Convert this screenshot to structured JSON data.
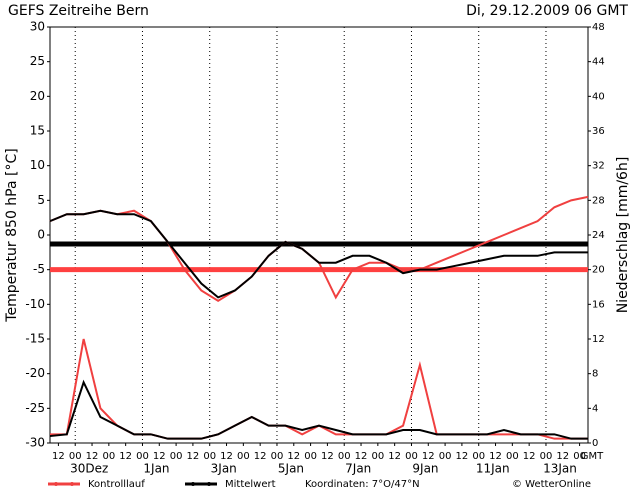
{
  "chart_data": {
    "type": "line",
    "title": "GEFS Zeitreihe Bern",
    "subtitle": "Di, 29.12.2009 06 GMT",
    "ylabel": "Temperatur 850 hPa [°C]",
    "y2label": "Niederschlag [mm/6h]",
    "xlabel": "GMT",
    "coordinates": "Koordinaten: 7°O/47°N",
    "credit": "© WetterOnline",
    "xlim": [
      0,
      384
    ],
    "ylim": [
      -30,
      30
    ],
    "yticks": [
      -30,
      -25,
      -20,
      -15,
      -10,
      -5,
      0,
      5,
      10,
      15,
      20,
      25,
      30
    ],
    "y2lim": [
      0,
      48
    ],
    "y2ticks": [
      0,
      4,
      8,
      12,
      16,
      20,
      24,
      28,
      32,
      36,
      40,
      44,
      48
    ],
    "xticks": [
      {
        "value": 6,
        "label": "12"
      },
      {
        "value": 18,
        "label": "00"
      },
      {
        "value": 30,
        "label": "12"
      },
      {
        "value": 42,
        "label": "00"
      },
      {
        "value": 54,
        "label": "12"
      },
      {
        "value": 66,
        "label": "00"
      },
      {
        "value": 78,
        "label": "12"
      },
      {
        "value": 90,
        "label": "00"
      },
      {
        "value": 102,
        "label": "12"
      },
      {
        "value": 114,
        "label": "00"
      },
      {
        "value": 126,
        "label": "12"
      },
      {
        "value": 138,
        "label": "00"
      },
      {
        "value": 150,
        "label": "12"
      },
      {
        "value": 162,
        "label": "00"
      },
      {
        "value": 174,
        "label": "12"
      },
      {
        "value": 186,
        "label": "00"
      },
      {
        "value": 198,
        "label": "12"
      },
      {
        "value": 210,
        "label": "00"
      },
      {
        "value": 222,
        "label": "12"
      },
      {
        "value": 234,
        "label": "00"
      },
      {
        "value": 246,
        "label": "12"
      },
      {
        "value": 258,
        "label": "00"
      },
      {
        "value": 270,
        "label": "12"
      },
      {
        "value": 282,
        "label": "00"
      },
      {
        "value": 294,
        "label": "12"
      },
      {
        "value": 306,
        "label": "00"
      },
      {
        "value": 318,
        "label": "12"
      },
      {
        "value": 330,
        "label": "00"
      },
      {
        "value": 342,
        "label": "12"
      },
      {
        "value": 354,
        "label": "00"
      },
      {
        "value": 366,
        "label": "12"
      },
      {
        "value": 378,
        "label": "00"
      }
    ],
    "date_ticks": [
      {
        "value": 18,
        "label": "30Dez"
      },
      {
        "value": 66,
        "label": "1Jan"
      },
      {
        "value": 114,
        "label": "3Jan"
      },
      {
        "value": 162,
        "label": "5Jan"
      },
      {
        "value": 210,
        "label": "7Jan"
      },
      {
        "value": 258,
        "label": "9Jan"
      },
      {
        "value": 306,
        "label": "11Jan"
      },
      {
        "value": 354,
        "label": "13Jan"
      }
    ],
    "x": [
      0,
      12,
      24,
      36,
      48,
      60,
      72,
      84,
      96,
      108,
      120,
      132,
      144,
      156,
      168,
      180,
      192,
      204,
      216,
      228,
      240,
      252,
      264,
      276,
      288,
      300,
      312,
      324,
      336,
      348,
      360,
      372,
      384
    ],
    "series": [
      {
        "name": "Kontrolllauf",
        "color": "#f04040",
        "values": [
          2,
          3,
          3,
          3.5,
          3,
          3.5,
          2,
          -1,
          -5,
          -8,
          -9.5,
          -8,
          -6,
          -3,
          -1,
          -2,
          -4,
          -9,
          -5,
          -4,
          -4,
          -5,
          -5,
          -4,
          -3,
          -2,
          -1,
          0,
          1,
          2,
          4,
          5,
          5.5
        ],
        "precipitation": [
          1,
          1,
          12,
          4,
          2,
          1,
          1,
          0.5,
          0.5,
          0.5,
          1,
          2,
          3,
          2,
          2,
          1,
          2,
          1,
          1,
          1,
          1,
          2,
          9,
          1,
          1,
          1,
          1,
          1,
          1,
          1,
          0.5,
          0.5,
          0.5
        ]
      },
      {
        "name": "Mittelwert",
        "color": "#000000",
        "values": [
          2,
          3,
          3,
          3.5,
          3,
          3,
          2,
          -1,
          -4,
          -7,
          -9,
          -8,
          -6,
          -3,
          -1,
          -2,
          -4,
          -4,
          -3,
          -3,
          -4,
          -5.5,
          -5,
          -5,
          -4.5,
          -4,
          -3.5,
          -3,
          -3,
          -3,
          -2.5,
          -2.5,
          -2.5
        ],
        "precipitation": [
          0.8,
          1,
          7,
          3,
          2,
          1,
          1,
          0.5,
          0.5,
          0.5,
          1,
          2,
          3,
          2,
          2,
          1.5,
          2,
          1.5,
          1,
          1,
          1,
          1.5,
          1.5,
          1,
          1,
          1,
          1,
          1.5,
          1,
          1,
          1,
          0.5,
          0.5
        ]
      }
    ],
    "reference_lines": [
      {
        "value": -1.3,
        "color": "#000000"
      },
      {
        "value": -5,
        "color": "#ff4040"
      }
    ]
  }
}
